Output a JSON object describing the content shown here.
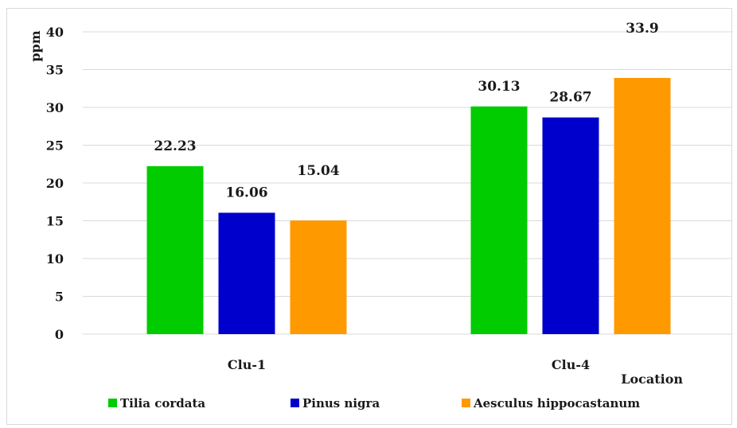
{
  "chart_data": {
    "type": "bar",
    "categories": [
      "Clu-1",
      "Clu-4"
    ],
    "series": [
      {
        "name": "Tilia cordata",
        "values": [
          22.23,
          30.13
        ],
        "color": "#00cc00"
      },
      {
        "name": "Pinus nigra",
        "values": [
          16.06,
          28.67
        ],
        "color": "#0000cc"
      },
      {
        "name": "Aesculus hippocastanum",
        "values": [
          15.04,
          33.9
        ],
        "color": "#ff9900"
      }
    ],
    "data_labels": [
      [
        "22.23",
        "30.13"
      ],
      [
        "16.06",
        "28.67"
      ],
      [
        "15.04",
        "33.9"
      ]
    ],
    "ylabel": "ppm",
    "xlabel": "Location",
    "ylim": [
      0,
      40
    ],
    "yticks": [
      0,
      5,
      10,
      15,
      20,
      25,
      30,
      35,
      40
    ],
    "grid": true,
    "legend_position": "bottom"
  }
}
